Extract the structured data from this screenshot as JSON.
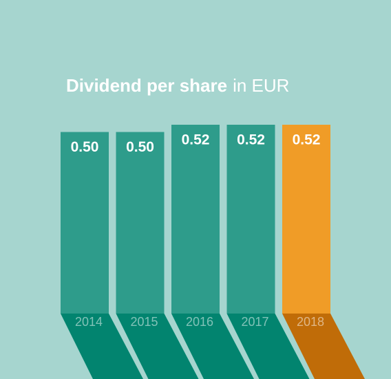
{
  "chart_data": {
    "type": "bar",
    "title": "Dividend per share",
    "subtitle": "in EUR",
    "categories": [
      "2014",
      "2015",
      "2016",
      "2017",
      "2018"
    ],
    "values": [
      0.5,
      0.5,
      0.52,
      0.52,
      0.52
    ],
    "value_labels": [
      "0.50",
      "0.50",
      "0.52",
      "0.52",
      "0.52"
    ],
    "colors": [
      "#2e9c8b",
      "#2e9c8b",
      "#2e9c8b",
      "#2e9c8b",
      "#f09c27"
    ],
    "shadow_colors": [
      "#02846f",
      "#02846f",
      "#02846f",
      "#02846f",
      "#c06c08"
    ]
  }
}
